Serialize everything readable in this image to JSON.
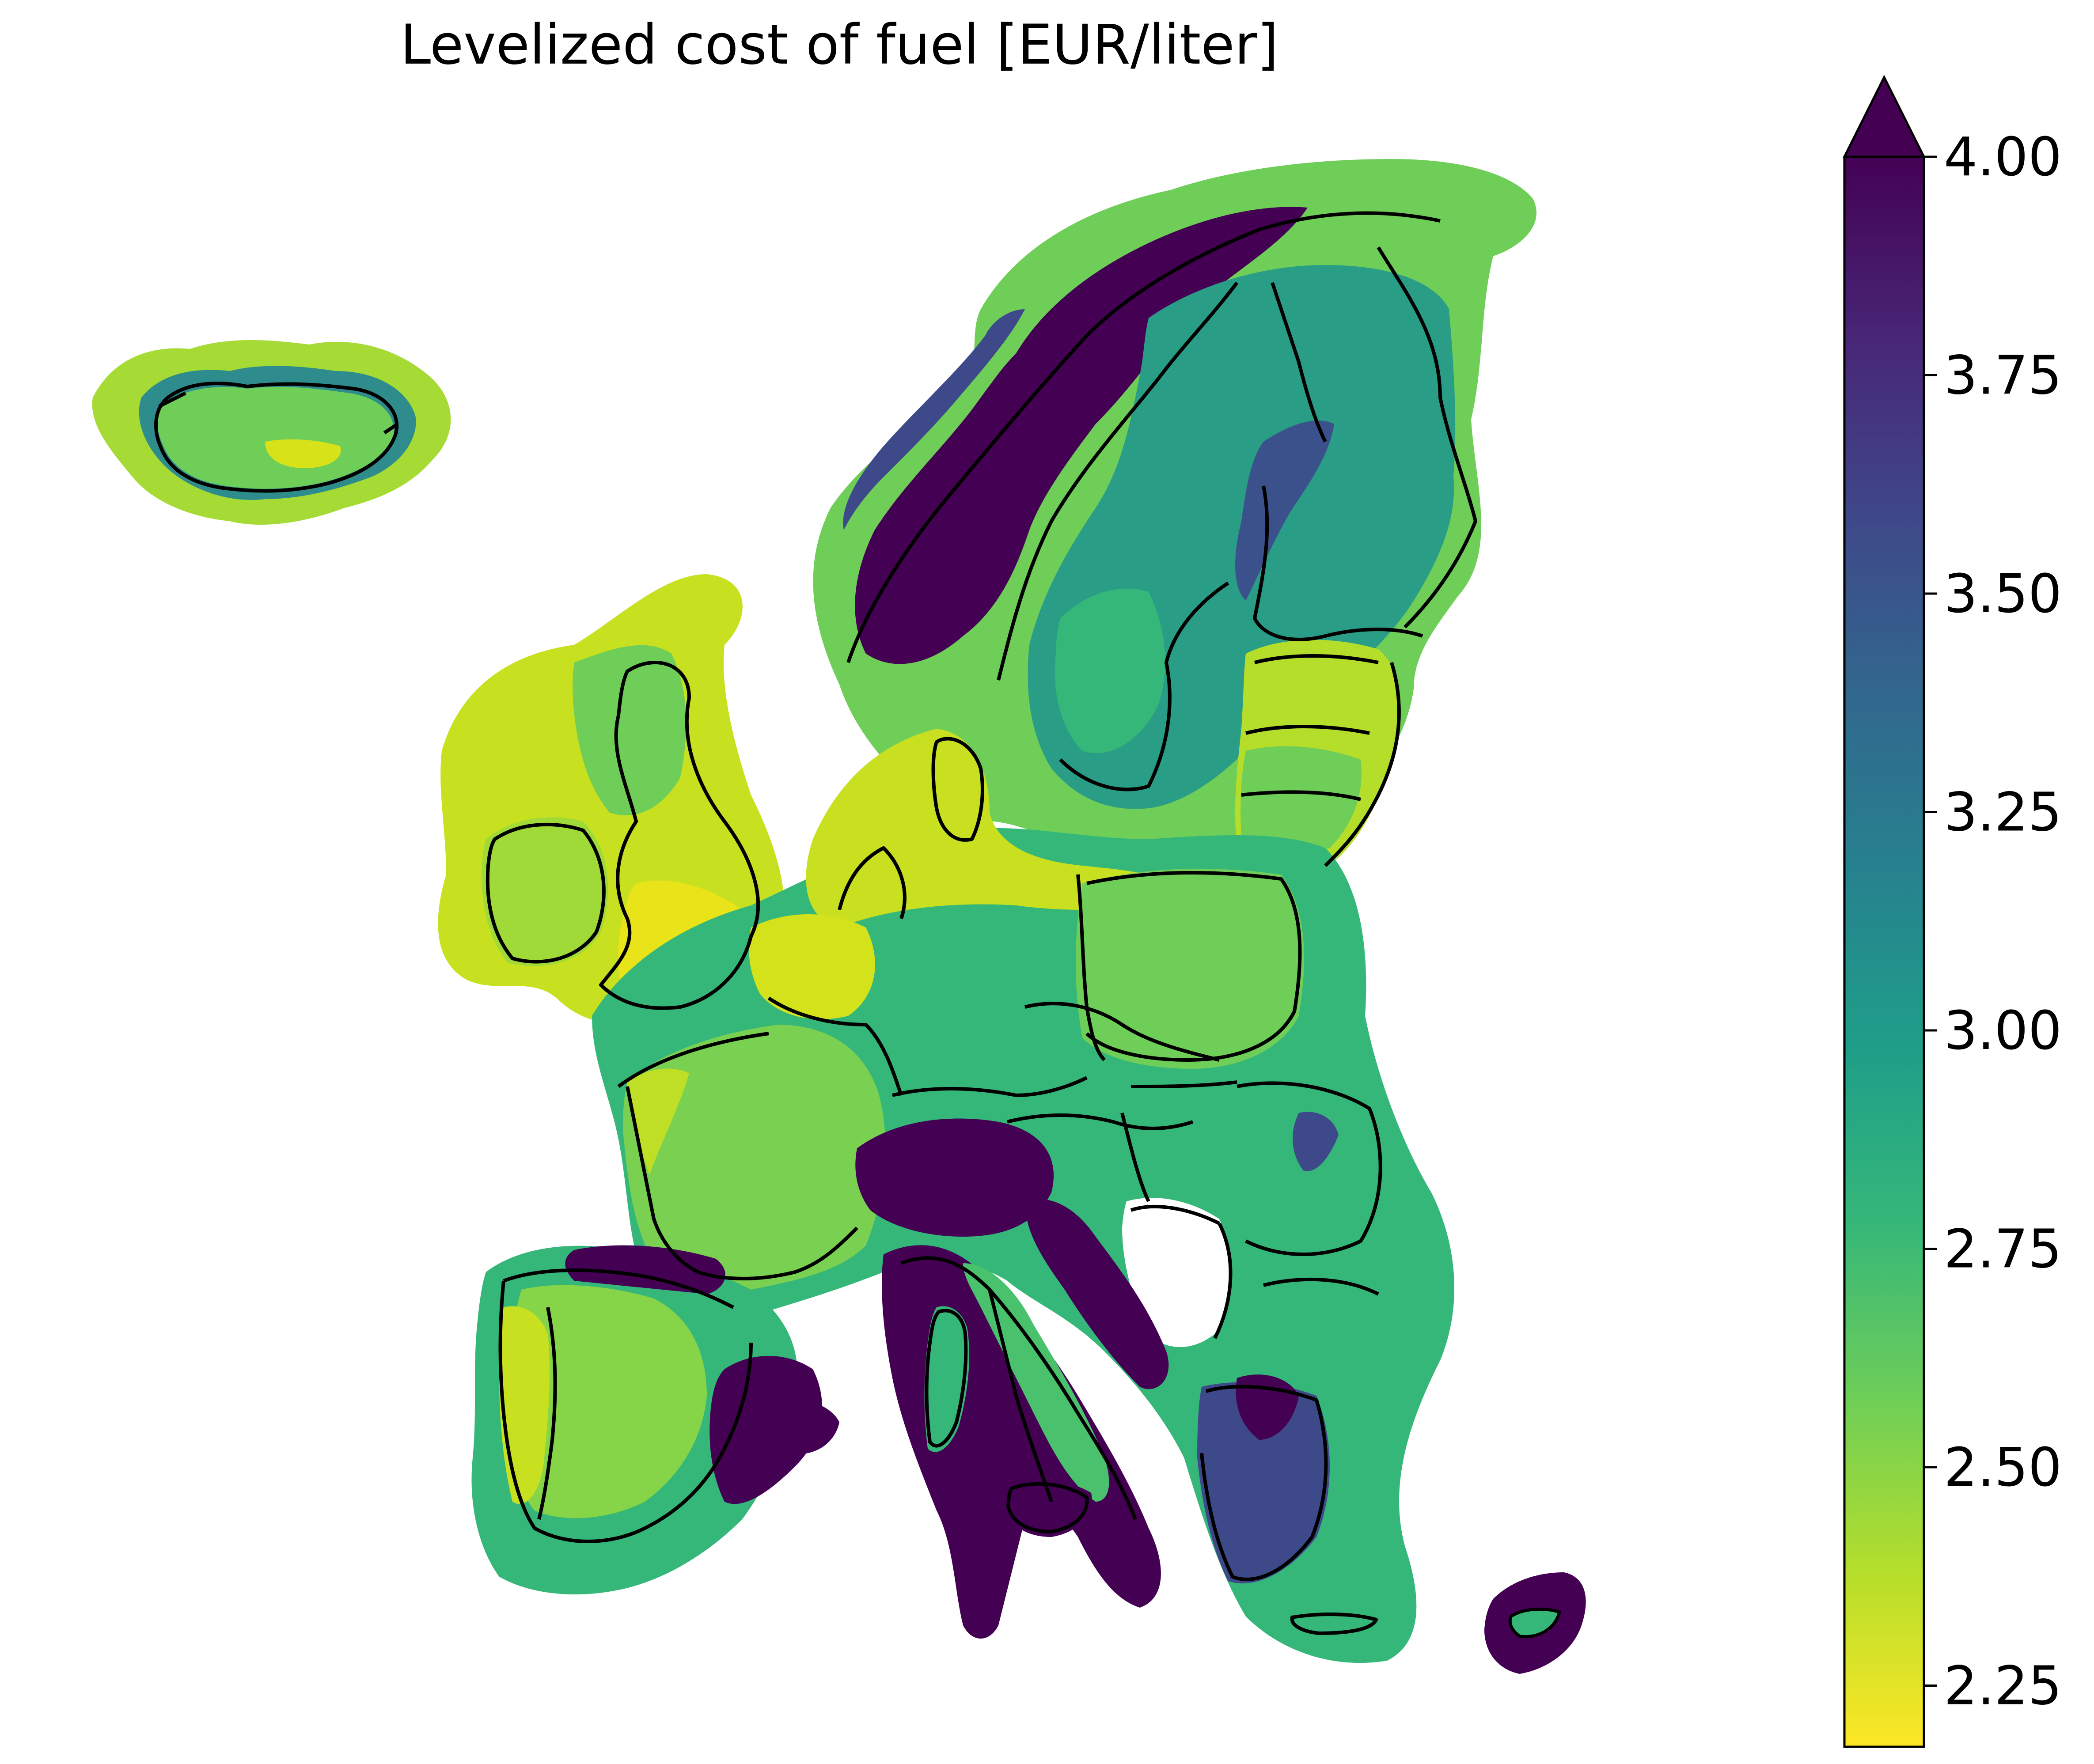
{
  "title": "Levelized cost of fuel [EUR/liter]",
  "colorbar": {
    "colormap": "viridis-reversed",
    "min": 2.18,
    "max": 4.0,
    "extend": "max",
    "ticks": [
      {
        "value": 2.25,
        "label": "2.25"
      },
      {
        "value": 2.5,
        "label": "2.50"
      },
      {
        "value": 2.75,
        "label": "2.75"
      },
      {
        "value": 3.0,
        "label": "3.00"
      },
      {
        "value": 3.25,
        "label": "3.25"
      },
      {
        "value": 3.5,
        "label": "3.50"
      },
      {
        "value": 3.75,
        "label": "3.75"
      },
      {
        "value": 4.0,
        "label": "4.00"
      }
    ],
    "stops": [
      "#fde725",
      "#b5de2b",
      "#6ece58",
      "#35b779",
      "#1f9e89",
      "#26828e",
      "#31688e",
      "#3e4989",
      "#482878",
      "#440154"
    ]
  },
  "colors": {
    "border": "#000000",
    "ocean": "#ffffff"
  }
}
